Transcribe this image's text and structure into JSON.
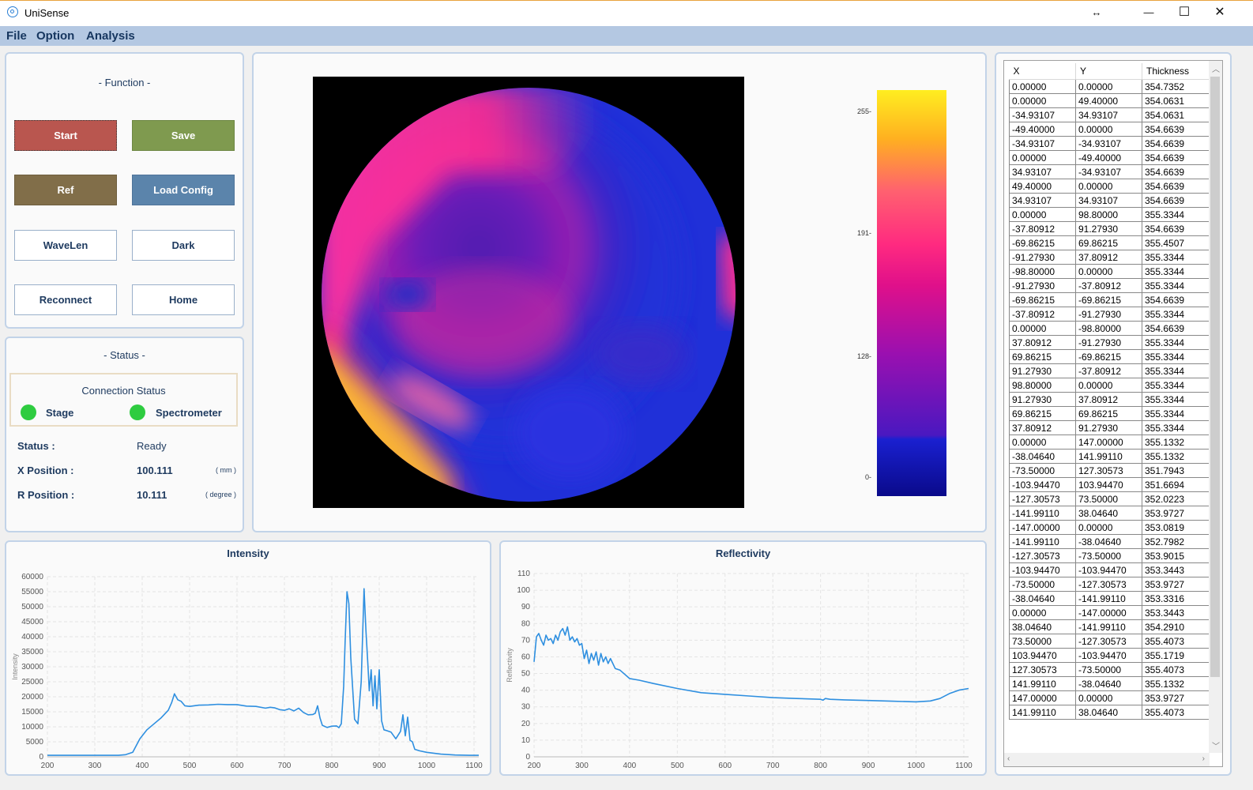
{
  "window": {
    "title": "UniSense",
    "resize_glyph": "↔",
    "minimize": "—",
    "maximize": "☐",
    "close": "✕"
  },
  "menu": [
    "File",
    "Option",
    "Analysis"
  ],
  "function_panel": {
    "title": "- Function -",
    "buttons": {
      "start": "Start",
      "save": "Save",
      "ref": "Ref",
      "load_config": "Load Config",
      "wavelen": "WaveLen",
      "dark": "Dark",
      "reconnect": "Reconnect",
      "home": "Home"
    }
  },
  "status_panel": {
    "title": "- Status -",
    "connection_title": "Connection Status",
    "stage_label": "Stage",
    "spectrometer_label": "Spectrometer",
    "status_label": "Status :",
    "status_value": "Ready",
    "x_label": "X Position :",
    "x_value": "100.111",
    "x_unit": "( mm )",
    "r_label": "R Position :",
    "r_value": "10.111",
    "r_unit": "( degree )",
    "indicator_color": "#2ecc40"
  },
  "colorbar": {
    "ticks": [
      "255-",
      "191-",
      "128-",
      "0-"
    ]
  },
  "table": {
    "columns": [
      "X",
      "Y",
      "Thickness"
    ],
    "rows": [
      [
        "0.00000",
        "0.00000",
        "354.7352"
      ],
      [
        "0.00000",
        "49.40000",
        "354.0631"
      ],
      [
        "-34.93107",
        "34.93107",
        "354.0631"
      ],
      [
        "-49.40000",
        "0.00000",
        "354.6639"
      ],
      [
        "-34.93107",
        "-34.93107",
        "354.6639"
      ],
      [
        "0.00000",
        "-49.40000",
        "354.6639"
      ],
      [
        "34.93107",
        "-34.93107",
        "354.6639"
      ],
      [
        "49.40000",
        "0.00000",
        "354.6639"
      ],
      [
        "34.93107",
        "34.93107",
        "354.6639"
      ],
      [
        "0.00000",
        "98.80000",
        "355.3344"
      ],
      [
        "-37.80912",
        "91.27930",
        "354.6639"
      ],
      [
        "-69.86215",
        "69.86215",
        "355.4507"
      ],
      [
        "-91.27930",
        "37.80912",
        "355.3344"
      ],
      [
        "-98.80000",
        "0.00000",
        "355.3344"
      ],
      [
        "-91.27930",
        "-37.80912",
        "355.3344"
      ],
      [
        "-69.86215",
        "-69.86215",
        "354.6639"
      ],
      [
        "-37.80912",
        "-91.27930",
        "355.3344"
      ],
      [
        "0.00000",
        "-98.80000",
        "354.6639"
      ],
      [
        "37.80912",
        "-91.27930",
        "355.3344"
      ],
      [
        "69.86215",
        "-69.86215",
        "355.3344"
      ],
      [
        "91.27930",
        "-37.80912",
        "355.3344"
      ],
      [
        "98.80000",
        "0.00000",
        "355.3344"
      ],
      [
        "91.27930",
        "37.80912",
        "355.3344"
      ],
      [
        "69.86215",
        "69.86215",
        "355.3344"
      ],
      [
        "37.80912",
        "91.27930",
        "355.3344"
      ],
      [
        "0.00000",
        "147.00000",
        "355.1332"
      ],
      [
        "-38.04640",
        "141.99110",
        "355.1332"
      ],
      [
        "-73.50000",
        "127.30573",
        "351.7943"
      ],
      [
        "-103.94470",
        "103.94470",
        "351.6694"
      ],
      [
        "-127.30573",
        "73.50000",
        "352.0223"
      ],
      [
        "-141.99110",
        "38.04640",
        "353.9727"
      ],
      [
        "-147.00000",
        "0.00000",
        "353.0819"
      ],
      [
        "-141.99110",
        "-38.04640",
        "352.7982"
      ],
      [
        "-127.30573",
        "-73.50000",
        "353.9015"
      ],
      [
        "-103.94470",
        "-103.94470",
        "353.3443"
      ],
      [
        "-73.50000",
        "-127.30573",
        "353.9727"
      ],
      [
        "-38.04640",
        "-141.99110",
        "353.3316"
      ],
      [
        "0.00000",
        "-147.00000",
        "353.3443"
      ],
      [
        "38.04640",
        "-141.99110",
        "354.2910"
      ],
      [
        "73.50000",
        "-127.30573",
        "355.4073"
      ],
      [
        "103.94470",
        "-103.94470",
        "355.1719"
      ],
      [
        "127.30573",
        "-73.50000",
        "355.4073"
      ],
      [
        "141.99110",
        "-38.04640",
        "355.1332"
      ],
      [
        "147.00000",
        "0.00000",
        "353.9727"
      ],
      [
        "141.99110",
        "38.04640",
        "355.4073"
      ]
    ]
  },
  "chart_data": [
    {
      "type": "line",
      "title": "Intensity",
      "ylabel": "Intensity",
      "xlim": [
        200,
        1110
      ],
      "ylim": [
        0,
        60000
      ],
      "xticks": [
        200,
        300,
        400,
        500,
        600,
        700,
        800,
        900,
        1000,
        1100
      ],
      "yticks": [
        0,
        5000,
        10000,
        15000,
        20000,
        25000,
        30000,
        35000,
        40000,
        45000,
        50000,
        55000,
        60000
      ],
      "grid": true,
      "color": "#2e8fe0",
      "series": [
        {
          "x": [
            200,
            350,
            365,
            380,
            395,
            410,
            425,
            440,
            455,
            462,
            468,
            475,
            482,
            490,
            500,
            520,
            540,
            560,
            580,
            600,
            620,
            640,
            660,
            670,
            680,
            690,
            700,
            710,
            720,
            730,
            740,
            750,
            760,
            765,
            770,
            775,
            780,
            790,
            800,
            810,
            815,
            820,
            825,
            828,
            832,
            836,
            840,
            848,
            855,
            862,
            868,
            872,
            876,
            879,
            883,
            887,
            891,
            895,
            900,
            905,
            910,
            916,
            925,
            935,
            945,
            950,
            955,
            960,
            965,
            970,
            975,
            985,
            1000,
            1030,
            1060,
            1090,
            1110
          ],
          "y": [
            500,
            500,
            700,
            1500,
            6000,
            9000,
            11000,
            13000,
            15500,
            18000,
            21000,
            19000,
            18500,
            17000,
            16800,
            17200,
            17300,
            17500,
            17400,
            17400,
            16900,
            16800,
            16200,
            16500,
            16300,
            15700,
            15500,
            16000,
            15300,
            16200,
            14800,
            14000,
            14100,
            14500,
            17000,
            13000,
            10500,
            9800,
            10200,
            10300,
            9700,
            11000,
            23500,
            38000,
            55000,
            51000,
            33000,
            12500,
            11000,
            25000,
            56000,
            42000,
            31000,
            22000,
            29000,
            17000,
            27000,
            16000,
            29000,
            12000,
            9000,
            8700,
            8200,
            6000,
            8500,
            14000,
            7000,
            13200,
            5500,
            5000,
            2500,
            2000,
            1500,
            900,
            600,
            500,
            500
          ]
        }
      ]
    },
    {
      "type": "line",
      "title": "Reflectivity",
      "ylabel": "Reflectivity",
      "xlim": [
        200,
        1110
      ],
      "ylim": [
        0,
        110
      ],
      "xticks": [
        200,
        300,
        400,
        500,
        600,
        700,
        800,
        900,
        1000,
        1100
      ],
      "yticks": [
        0,
        10,
        20,
        30,
        40,
        50,
        60,
        70,
        80,
        90,
        100,
        110
      ],
      "grid": true,
      "color": "#2e8fe0",
      "series": [
        {
          "x": [
            200,
            205,
            210,
            215,
            220,
            225,
            230,
            235,
            240,
            245,
            250,
            255,
            260,
            265,
            270,
            275,
            280,
            285,
            290,
            295,
            300,
            305,
            310,
            315,
            320,
            325,
            330,
            335,
            340,
            345,
            350,
            355,
            360,
            365,
            370,
            380,
            400,
            420,
            450,
            500,
            550,
            600,
            650,
            700,
            750,
            800,
            805,
            810,
            820,
            850,
            900,
            950,
            1000,
            1030,
            1050,
            1070,
            1090,
            1110
          ],
          "y": [
            57,
            72,
            74,
            70,
            67,
            73,
            70,
            71,
            68,
            73,
            70,
            75,
            77,
            73,
            78,
            70,
            72,
            69,
            71,
            67,
            68,
            59,
            64,
            56,
            62,
            58,
            63,
            55,
            62,
            57,
            60,
            56,
            59,
            56,
            53,
            52,
            47,
            46,
            44,
            41,
            38.5,
            37.5,
            36.5,
            35.5,
            35,
            34.5,
            34,
            35,
            34.5,
            34.2,
            33.8,
            33.4,
            33,
            33.5,
            35,
            38,
            40,
            41
          ]
        }
      ]
    }
  ]
}
